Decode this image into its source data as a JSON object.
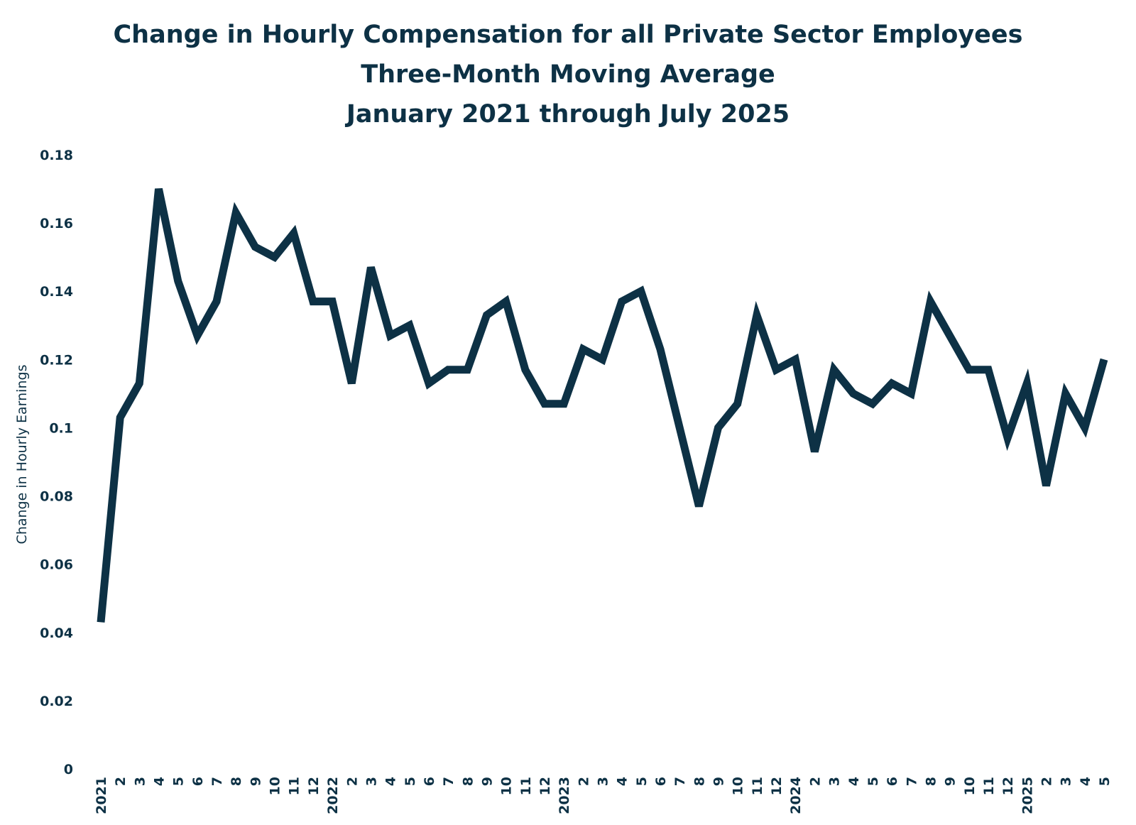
{
  "chart_data": {
    "type": "line",
    "title": [
      "Change in Hourly Compensation for all Private Sector Employees",
      "Three-Month Moving Average",
      "January 2021 through July 2025"
    ],
    "xlabel": "",
    "ylabel": "Change in Hourly Earnings",
    "ylim": [
      0,
      0.18
    ],
    "yticks": [
      0,
      0.02,
      0.04,
      0.06,
      0.08,
      0.1,
      0.12,
      0.14,
      0.16,
      0.18
    ],
    "ytick_labels": [
      "0",
      "0.02",
      "0.04",
      "0.06",
      "0.08",
      "0.1",
      "0.12",
      "0.14",
      "0.16",
      "0.18"
    ],
    "grid": false,
    "legend": "none",
    "line_color": "#0d3145",
    "categories": [
      "2021",
      "2",
      "3",
      "4",
      "5",
      "6",
      "7",
      "8",
      "9",
      "10",
      "11",
      "12",
      "2022",
      "2",
      "3",
      "4",
      "5",
      "6",
      "7",
      "8",
      "9",
      "10",
      "11",
      "12",
      "2023",
      "2",
      "3",
      "4",
      "5",
      "6",
      "7",
      "8",
      "9",
      "10",
      "11",
      "12",
      "2024",
      "2",
      "3",
      "4",
      "5",
      "6",
      "7",
      "8",
      "9",
      "10",
      "11",
      "12",
      "2025",
      "2",
      "3",
      "4",
      "5"
    ],
    "series": [
      {
        "values": [
          0.043,
          0.103,
          0.113,
          0.17,
          0.143,
          0.127,
          0.137,
          0.163,
          0.153,
          0.15,
          0.157,
          0.137,
          0.137,
          0.113,
          0.147,
          0.127,
          0.13,
          0.113,
          0.117,
          0.117,
          0.133,
          0.137,
          0.117,
          0.107,
          0.107,
          0.123,
          0.12,
          0.137,
          0.14,
          0.123,
          0.1,
          0.077,
          0.1,
          0.107,
          0.133,
          0.117,
          0.12,
          0.093,
          0.117,
          0.11,
          0.107,
          0.113,
          0.11,
          0.137,
          0.127,
          0.117,
          0.117,
          0.097,
          0.113,
          0.083,
          0.11,
          0.1,
          0.12
        ]
      }
    ]
  }
}
